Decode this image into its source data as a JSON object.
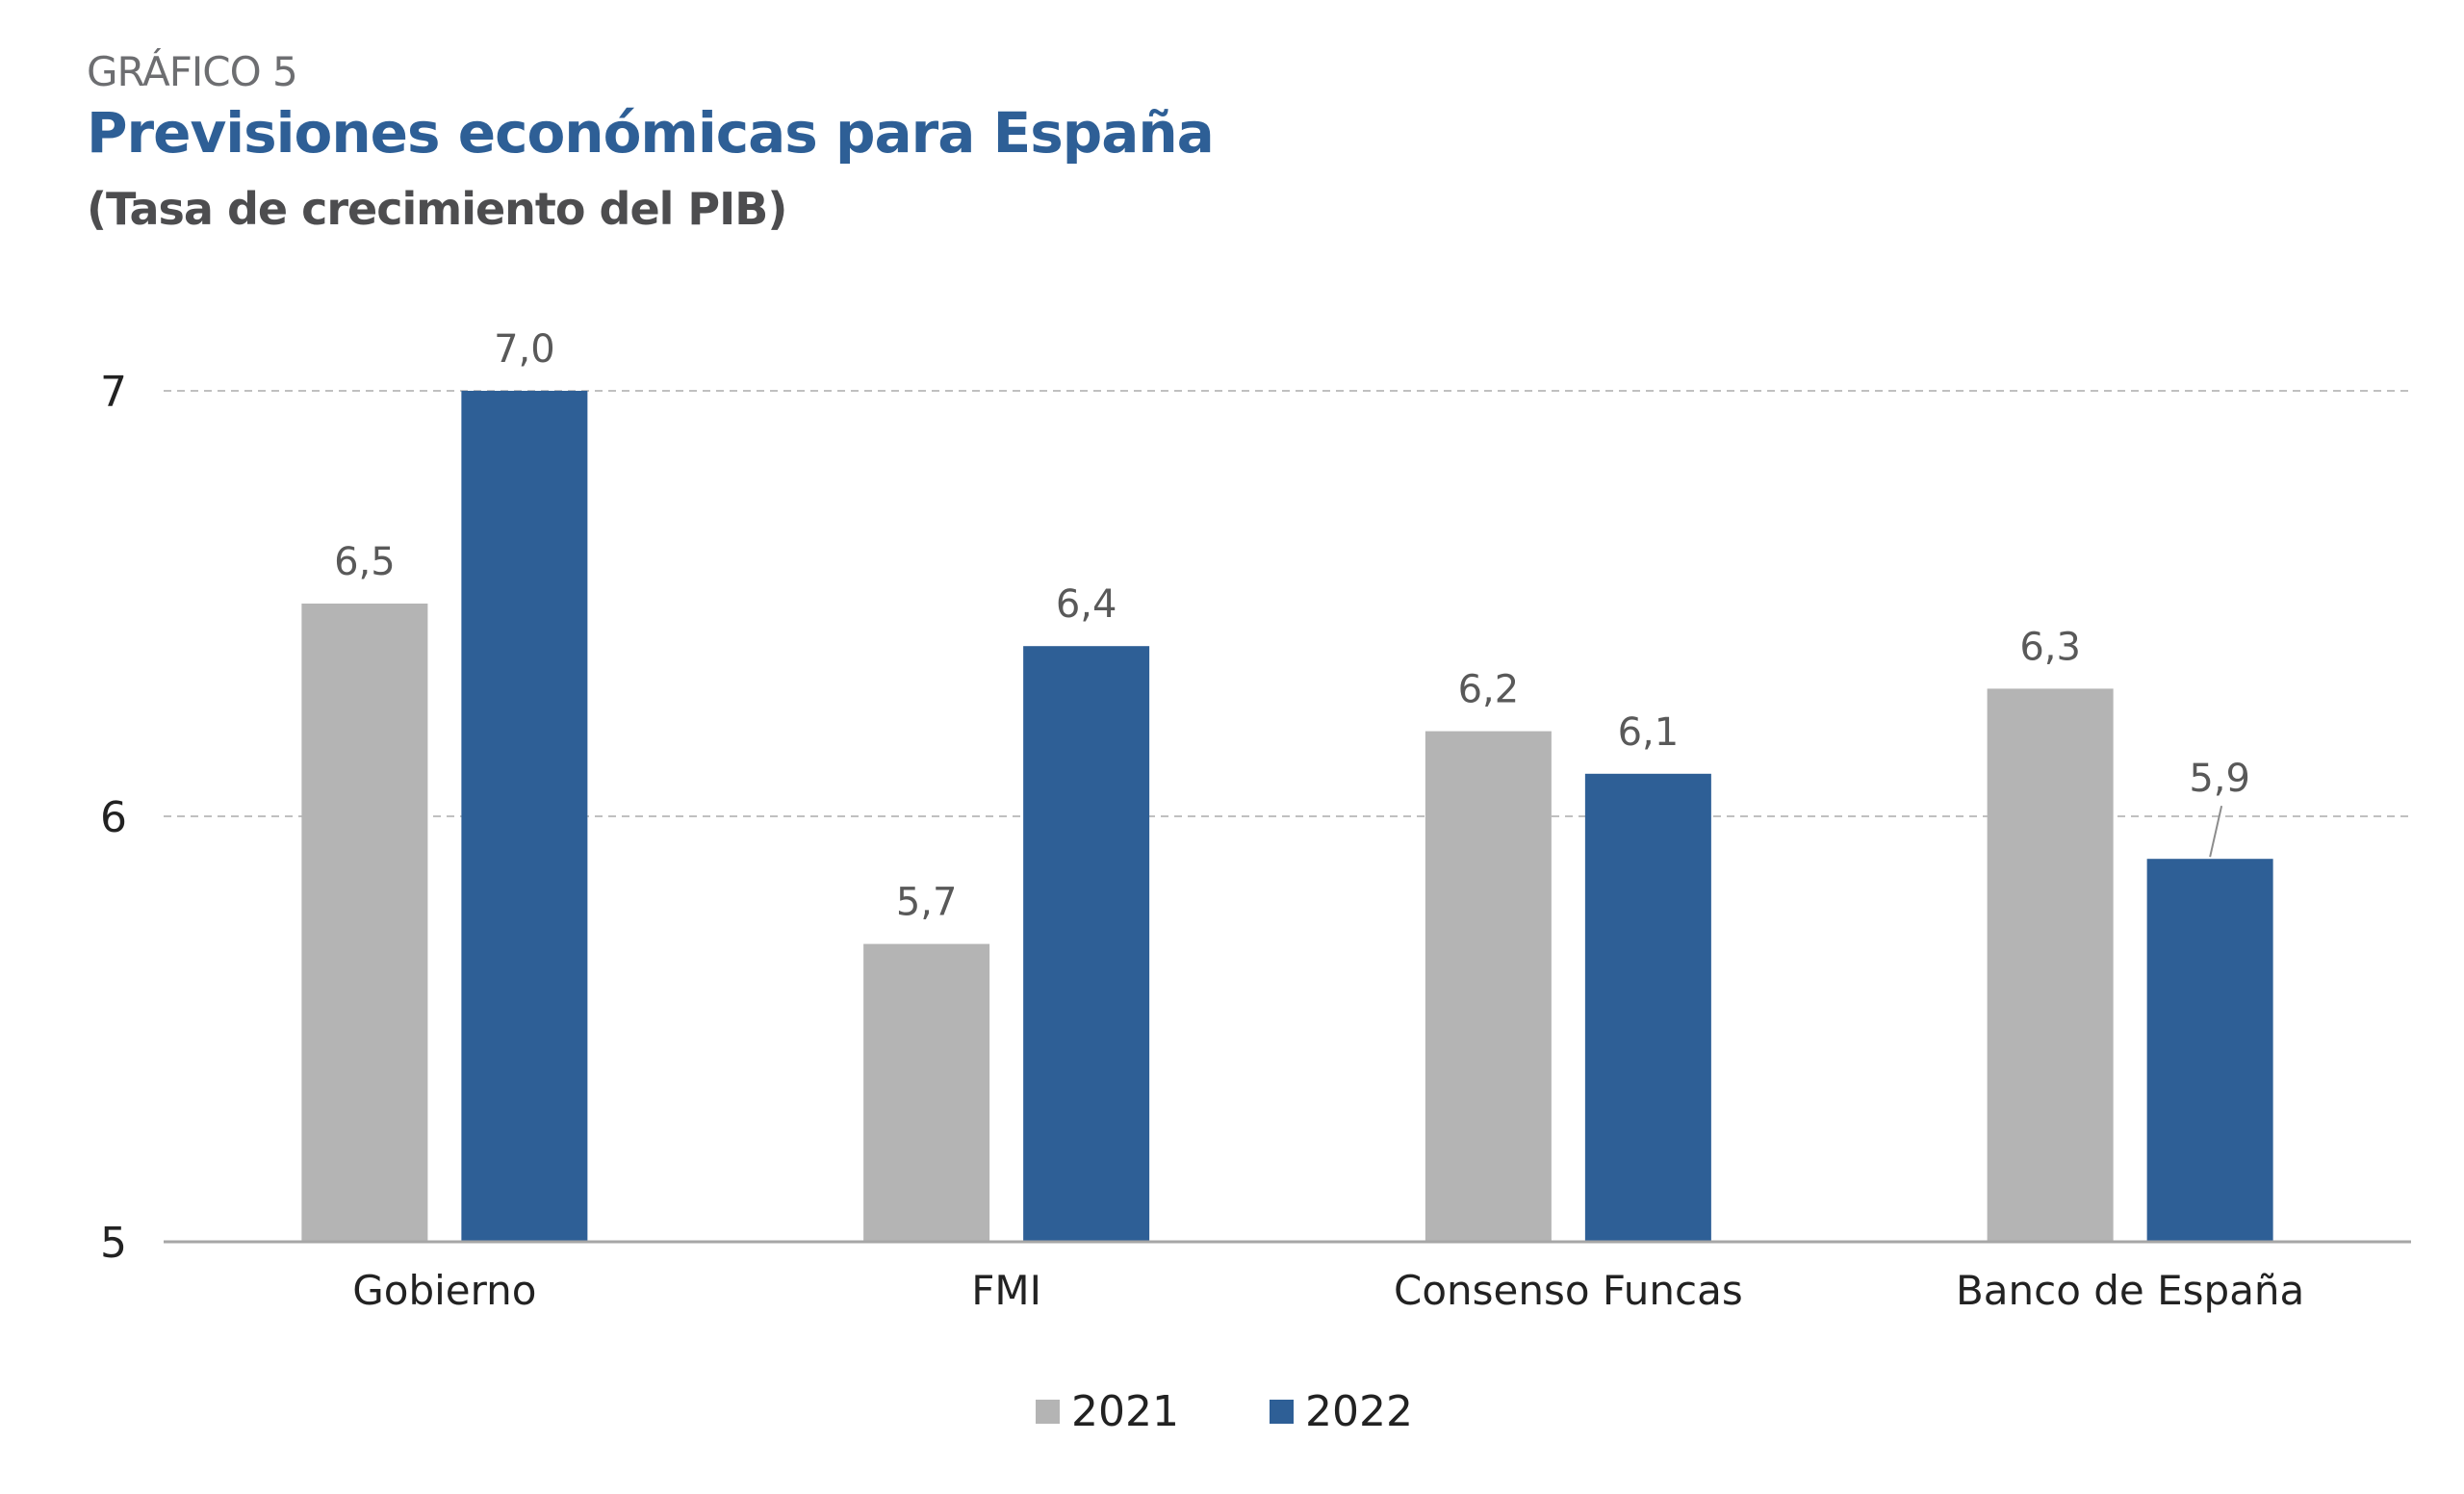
{
  "header": {
    "kicker": "GRÁFICO 5",
    "title": "Previsiones económicas para España",
    "subtitle": "(Tasa de crecimiento del PIB)"
  },
  "colors": {
    "series_2021": "#b4b4b4",
    "series_2022": "#2e5f96",
    "grid": "#c0c0c0",
    "axis": "#a6a6a6",
    "text": "#222222",
    "label": "#595959"
  },
  "chart_data": {
    "type": "bar",
    "categories": [
      "Gobierno",
      "FMI",
      "Consenso Funcas",
      "Banco de España"
    ],
    "series": [
      {
        "name": "2021",
        "values": [
          6.5,
          5.7,
          6.2,
          6.3
        ],
        "labels": [
          "6,5",
          "5,7",
          "6,2",
          "6,3"
        ],
        "color": "#b4b4b4"
      },
      {
        "name": "2022",
        "values": [
          7.0,
          6.4,
          6.1,
          5.9
        ],
        "labels": [
          "7,0",
          "6,4",
          "6,1",
          "5,9"
        ],
        "color": "#2e5f96"
      }
    ],
    "y_ticks": [
      5,
      6,
      7
    ],
    "ylim": [
      5,
      7
    ],
    "grid": true,
    "legend": "bottom-center",
    "title": "Previsiones económicas para España",
    "subtitle": "(Tasa de crecimiento del PIB)",
    "xlabel": "",
    "ylabel": ""
  }
}
